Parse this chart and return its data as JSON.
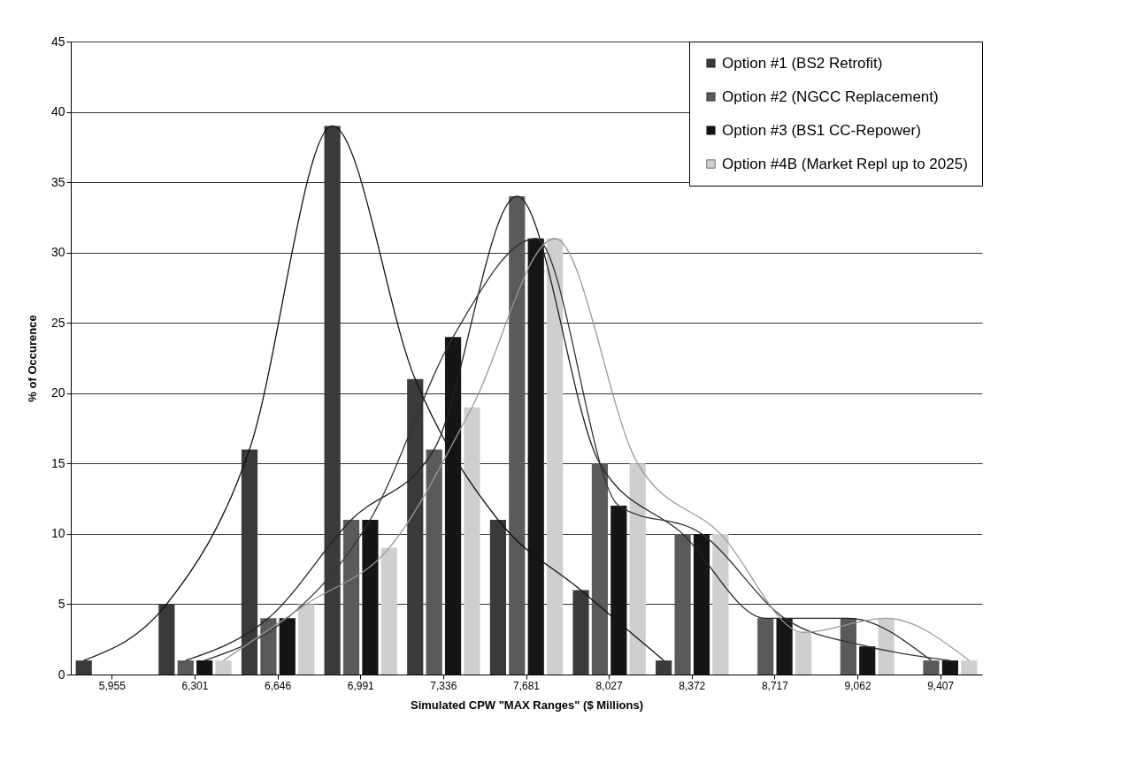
{
  "chart_data": {
    "type": "bar",
    "xlabel": "Simulated CPW  \"MAX Ranges\" ($  Millions)",
    "ylabel": "% of Occurence",
    "categories": [
      "5,955",
      "6,301",
      "6,646",
      "6,991",
      "7,336",
      "7,681",
      "8,027",
      "8,372",
      "8,717",
      "9,062",
      "9,407"
    ],
    "series": [
      {
        "name": "Option #1 (BS2 Retrofit)",
        "color": "#3a3a3a",
        "values": [
          1,
          5,
          16,
          39,
          21,
          11,
          6,
          1,
          0,
          0,
          0
        ]
      },
      {
        "name": "Option #2 (NGCC Replacement)",
        "color": "#5a5a5a",
        "values": [
          0,
          1,
          4,
          11,
          16,
          34,
          15,
          10,
          4,
          4,
          1
        ]
      },
      {
        "name": "Option #3 (BS1 CC-Repower)",
        "color": "#151515",
        "values": [
          0,
          1,
          4,
          11,
          24,
          31,
          12,
          10,
          4,
          2,
          1
        ]
      },
      {
        "name": "Option #4B (Market Repl up to 2025)",
        "color": "#cfcfcf",
        "values": [
          0,
          1,
          5,
          9,
          19,
          31,
          15,
          10,
          3,
          4,
          1
        ]
      },
      {
        "type": "line",
        "color": "#111111",
        "values": [
          1,
          5,
          16,
          39,
          21,
          11,
          6,
          1,
          null,
          null,
          null
        ]
      },
      {
        "type": "line",
        "color": "#222222",
        "values": [
          null,
          1,
          4,
          11,
          16,
          34,
          15,
          10,
          4,
          4,
          1
        ]
      },
      {
        "type": "line",
        "color": "#333333",
        "values": [
          null,
          1,
          4,
          11,
          24,
          31,
          12,
          10,
          4,
          2,
          1
        ]
      },
      {
        "type": "line",
        "color": "#999999",
        "values": [
          null,
          1,
          5,
          9,
          19,
          31,
          15,
          10,
          3,
          4,
          1
        ]
      }
    ],
    "ylim": [
      0,
      45
    ],
    "yticks": [
      0,
      5,
      10,
      15,
      20,
      25,
      30,
      35,
      40,
      45
    ],
    "grid": "y",
    "legend": "top right"
  }
}
